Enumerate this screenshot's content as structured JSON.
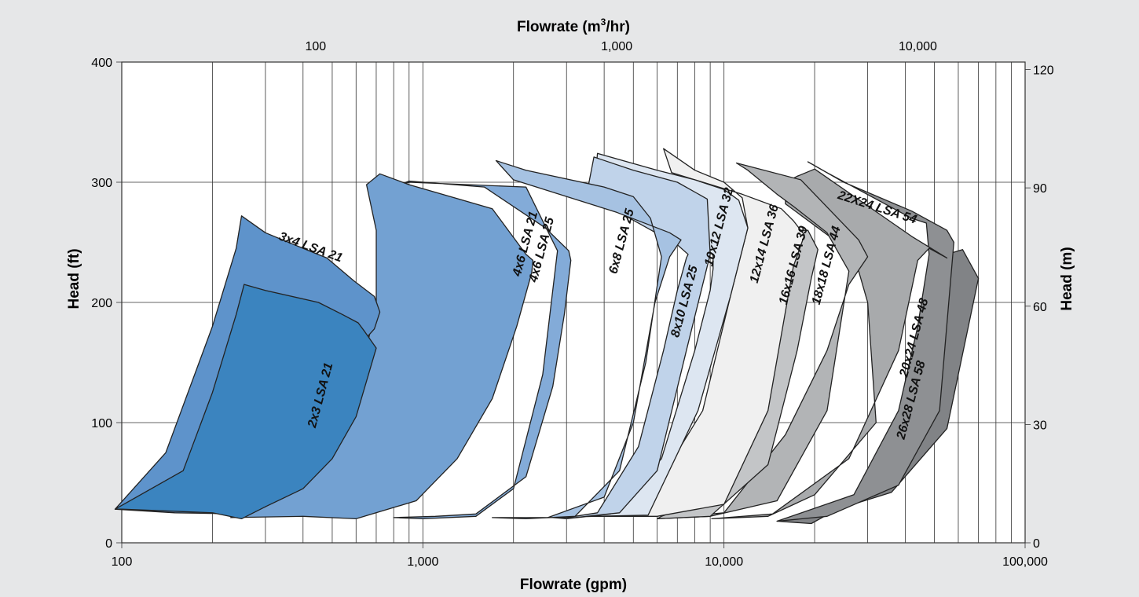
{
  "chart_data": {
    "type": "area",
    "x_axis_bottom": {
      "label": "Flowrate (gpm)",
      "scale": "log",
      "range": [
        100,
        100000
      ],
      "tick_labels": [
        "100",
        "1,000",
        "10,000",
        "100,000"
      ],
      "tick_values": [
        100,
        1000,
        10000,
        100000
      ]
    },
    "x_axis_top": {
      "label_main": "Flowrate (m",
      "label_sup": "3",
      "label_end": "/hr)",
      "scale": "log",
      "range": [
        22.7,
        22712
      ],
      "tick_labels": [
        "100",
        "1,000",
        "10,000"
      ],
      "tick_values": [
        100,
        1000,
        10000
      ]
    },
    "y_axis_left": {
      "label": "Head (ft)",
      "range": [
        0,
        400
      ],
      "tick_labels": [
        "0",
        "100",
        "200",
        "300",
        "400"
      ],
      "tick_values": [
        0,
        100,
        200,
        300,
        400
      ]
    },
    "y_axis_right": {
      "label": "Head (m)",
      "range": [
        0,
        121.9
      ],
      "tick_labels": [
        "0",
        "30",
        "60",
        "90",
        "120"
      ],
      "tick_values": [
        0,
        30,
        60,
        90,
        120
      ]
    },
    "grid": true,
    "series": [
      {
        "name": "26x28 LSA 58",
        "color": "#818386",
        "label_x": 43000,
        "label_y": 118,
        "label_angle": -75,
        "points": [
          [
            15000,
            18
          ],
          [
            19500,
            16
          ],
          [
            30000,
            42
          ],
          [
            42000,
            110
          ],
          [
            50000,
            190
          ],
          [
            55000,
            240
          ],
          [
            62000,
            244
          ],
          [
            70000,
            220
          ],
          [
            55000,
            95
          ],
          [
            36000,
            42
          ],
          [
            20000,
            22
          ]
        ]
      },
      {
        "name": "22X24 LSA 54",
        "color": "#8e9093",
        "label_x": 32000,
        "label_y": 276,
        "label_angle": 18,
        "points": [
          [
            15000,
            18
          ],
          [
            27000,
            40
          ],
          [
            38000,
            110
          ],
          [
            44000,
            180
          ],
          [
            48000,
            240
          ],
          [
            47000,
            266
          ],
          [
            42000,
            270
          ],
          [
            22000,
            308
          ],
          [
            19000,
            317
          ],
          [
            25000,
            300
          ],
          [
            42000,
            276
          ],
          [
            55000,
            260
          ],
          [
            58000,
            250
          ],
          [
            52000,
            110
          ],
          [
            38000,
            48
          ],
          [
            22000,
            22
          ]
        ]
      },
      {
        "name": "20x24 LSA 48",
        "color": "#a8aaac",
        "label_x": 44000,
        "label_y": 170,
        "label_angle": -75,
        "points": [
          [
            9100,
            20
          ],
          [
            14500,
            24
          ],
          [
            26000,
            70
          ],
          [
            38000,
            160
          ],
          [
            44000,
            235
          ],
          [
            48000,
            245
          ],
          [
            55000,
            237
          ],
          [
            42000,
            255
          ],
          [
            20000,
            311
          ],
          [
            17500,
            305
          ],
          [
            16000,
            300
          ],
          [
            16000,
            282
          ],
          [
            27000,
            240
          ],
          [
            30000,
            200
          ],
          [
            32000,
            100
          ],
          [
            20000,
            40
          ],
          [
            14000,
            22
          ]
        ]
      },
      {
        "name": "18x18 LSA 44",
        "color": "#b2b4b6",
        "label_x": 22500,
        "label_y": 230,
        "label_angle": -75,
        "points": [
          [
            6000,
            20
          ],
          [
            10000,
            25
          ],
          [
            16000,
            90
          ],
          [
            22000,
            160
          ],
          [
            26000,
            215
          ],
          [
            30000,
            238
          ],
          [
            28000,
            252
          ],
          [
            18000,
            302
          ],
          [
            11000,
            316
          ],
          [
            12000,
            310
          ],
          [
            15000,
            290
          ],
          [
            17000,
            280
          ],
          [
            22000,
            258
          ],
          [
            26000,
            226
          ],
          [
            22000,
            110
          ],
          [
            15000,
            35
          ],
          [
            9000,
            22
          ]
        ]
      },
      {
        "name": "16x16 LSA 39",
        "color": "#c3c5c7",
        "label_x": 17500,
        "label_y": 230,
        "label_angle": -75,
        "points": [
          [
            6000,
            20
          ],
          [
            9000,
            22
          ],
          [
            14000,
            65
          ],
          [
            17500,
            160
          ],
          [
            19500,
            220
          ],
          [
            20500,
            244
          ],
          [
            19000,
            260
          ],
          [
            17000,
            260
          ],
          [
            16000,
            250
          ],
          [
            15000,
            200
          ],
          [
            12000,
            120
          ],
          [
            8500,
            35
          ],
          [
            6200,
            22
          ]
        ]
      },
      {
        "name": "12x14 LSA 36",
        "color": "#f0f0f0",
        "label_x": 14000,
        "label_y": 248,
        "label_angle": -75,
        "points": [
          [
            3700,
            22
          ],
          [
            6000,
            22
          ],
          [
            10000,
            32
          ],
          [
            14000,
            110
          ],
          [
            17000,
            230
          ],
          [
            18500,
            256
          ],
          [
            17000,
            268
          ],
          [
            15500,
            278
          ],
          [
            11500,
            290
          ],
          [
            6700,
            308
          ],
          [
            6300,
            328
          ],
          [
            8000,
            310
          ],
          [
            10000,
            300
          ],
          [
            11500,
            287
          ],
          [
            12000,
            262
          ],
          [
            10500,
            205
          ],
          [
            8500,
            110
          ],
          [
            5200,
            23
          ]
        ]
      },
      {
        "name": "10x12 LSA 32",
        "color": "#dde6f1",
        "label_x": 9900,
        "label_y": 262,
        "label_angle": -75,
        "points": [
          [
            2700,
            21
          ],
          [
            3000,
            20
          ],
          [
            4200,
            24
          ],
          [
            6200,
            70
          ],
          [
            8000,
            160
          ],
          [
            9000,
            210
          ],
          [
            9200,
            228
          ],
          [
            9200,
            239
          ],
          [
            8000,
            258
          ],
          [
            6000,
            270
          ],
          [
            3700,
            290
          ],
          [
            3800,
            324
          ],
          [
            6000,
            310
          ],
          [
            8000,
            302
          ],
          [
            10000,
            294
          ],
          [
            11200,
            285
          ],
          [
            12000,
            262
          ],
          [
            10500,
            205
          ],
          [
            8200,
            110
          ],
          [
            5600,
            23
          ],
          [
            3700,
            22
          ]
        ]
      },
      {
        "name": "8x10 LSA 25",
        "color": "#c0d3ea",
        "label_x": 7600,
        "label_y": 200,
        "label_angle": -75,
        "points": [
          [
            2600,
            21
          ],
          [
            3200,
            22
          ],
          [
            3800,
            25
          ],
          [
            5200,
            80
          ],
          [
            6300,
            160
          ],
          [
            7000,
            210
          ],
          [
            7500,
            237
          ],
          [
            7600,
            240
          ],
          [
            7000,
            248
          ],
          [
            3500,
            290
          ],
          [
            3700,
            321
          ],
          [
            5000,
            310
          ],
          [
            7000,
            300
          ],
          [
            8800,
            286
          ],
          [
            9000,
            240
          ],
          [
            7500,
            160
          ],
          [
            6000,
            60
          ],
          [
            4500,
            25
          ],
          [
            3200,
            21
          ]
        ]
      },
      {
        "name": "6x8 LSA 25",
        "color": "#a6c2e2",
        "label_x": 4700,
        "label_y": 250,
        "label_angle": -75,
        "points": [
          [
            1700,
            21
          ],
          [
            2600,
            21
          ],
          [
            4000,
            38
          ],
          [
            5000,
            100
          ],
          [
            5900,
            200
          ],
          [
            6600,
            238
          ],
          [
            7200,
            252
          ],
          [
            6600,
            258
          ],
          [
            4400,
            275
          ],
          [
            2000,
            302
          ],
          [
            1750,
            318
          ],
          [
            2200,
            310
          ],
          [
            4000,
            296
          ],
          [
            5000,
            288
          ],
          [
            5700,
            270
          ],
          [
            6200,
            238
          ],
          [
            5500,
            150
          ],
          [
            4500,
            60
          ],
          [
            3200,
            22
          ],
          [
            2200,
            20
          ]
        ]
      },
      {
        "name": "4x6 LSA 25",
        "color": "#83abd8",
        "label_x": 2550,
        "label_y": 243,
        "label_angle": -75,
        "points": [
          [
            800,
            21
          ],
          [
            1100,
            22
          ],
          [
            1500,
            24
          ],
          [
            2200,
            55
          ],
          [
            2700,
            130
          ],
          [
            2950,
            190
          ],
          [
            3100,
            235
          ],
          [
            3050,
            243
          ],
          [
            2550,
            262
          ],
          [
            1600,
            296
          ],
          [
            900,
            301
          ],
          [
            800,
            296
          ],
          [
            900,
            300
          ],
          [
            2200,
            296
          ],
          [
            2650,
            255
          ],
          [
            2800,
            243
          ],
          [
            2500,
            140
          ],
          [
            2000,
            45
          ],
          [
            1500,
            22
          ],
          [
            1000,
            20
          ]
        ]
      },
      {
        "name": "4x6 LSA 21",
        "color": "#73a1d2",
        "label_x": 2250,
        "label_y": 248,
        "label_angle": -75,
        "points": [
          [
            230,
            21
          ],
          [
            400,
            22
          ],
          [
            600,
            20
          ],
          [
            950,
            35
          ],
          [
            1300,
            70
          ],
          [
            1700,
            120
          ],
          [
            2050,
            180
          ],
          [
            2300,
            225
          ],
          [
            2320,
            235
          ],
          [
            2200,
            240
          ],
          [
            1700,
            278
          ],
          [
            900,
            298
          ],
          [
            720,
            307
          ],
          [
            650,
            298
          ],
          [
            700,
            260
          ],
          [
            700,
            200
          ],
          [
            600,
            120
          ],
          [
            400,
            60
          ],
          [
            300,
            30
          ]
        ]
      },
      {
        "name": "3x4 LSA 21",
        "color": "#5e93cb",
        "label_x": 420,
        "label_y": 243,
        "label_angle": 20,
        "points": [
          [
            95,
            28
          ],
          [
            140,
            75
          ],
          [
            200,
            180
          ],
          [
            240,
            245
          ],
          [
            250,
            272
          ],
          [
            300,
            258
          ],
          [
            400,
            245
          ],
          [
            480,
            237
          ],
          [
            590,
            218
          ],
          [
            690,
            205
          ],
          [
            720,
            192
          ],
          [
            690,
            178
          ],
          [
            620,
            165
          ],
          [
            500,
            148
          ],
          [
            420,
            110
          ],
          [
            330,
            55
          ],
          [
            250,
            24
          ],
          [
            150,
            25
          ]
        ]
      },
      {
        "name": "2x3 LSA 21",
        "color": "#3b84bf",
        "label_x": 470,
        "label_y": 122,
        "label_angle": -75,
        "points": [
          [
            95,
            28
          ],
          [
            160,
            60
          ],
          [
            200,
            125
          ],
          [
            240,
            190
          ],
          [
            255,
            215
          ],
          [
            300,
            210
          ],
          [
            450,
            200
          ],
          [
            540,
            190
          ],
          [
            610,
            183
          ],
          [
            640,
            176
          ],
          [
            700,
            162
          ],
          [
            600,
            105
          ],
          [
            500,
            70
          ],
          [
            400,
            45
          ],
          [
            300,
            30
          ],
          [
            250,
            20
          ],
          [
            200,
            25
          ],
          [
            100,
            28
          ]
        ]
      }
    ]
  }
}
